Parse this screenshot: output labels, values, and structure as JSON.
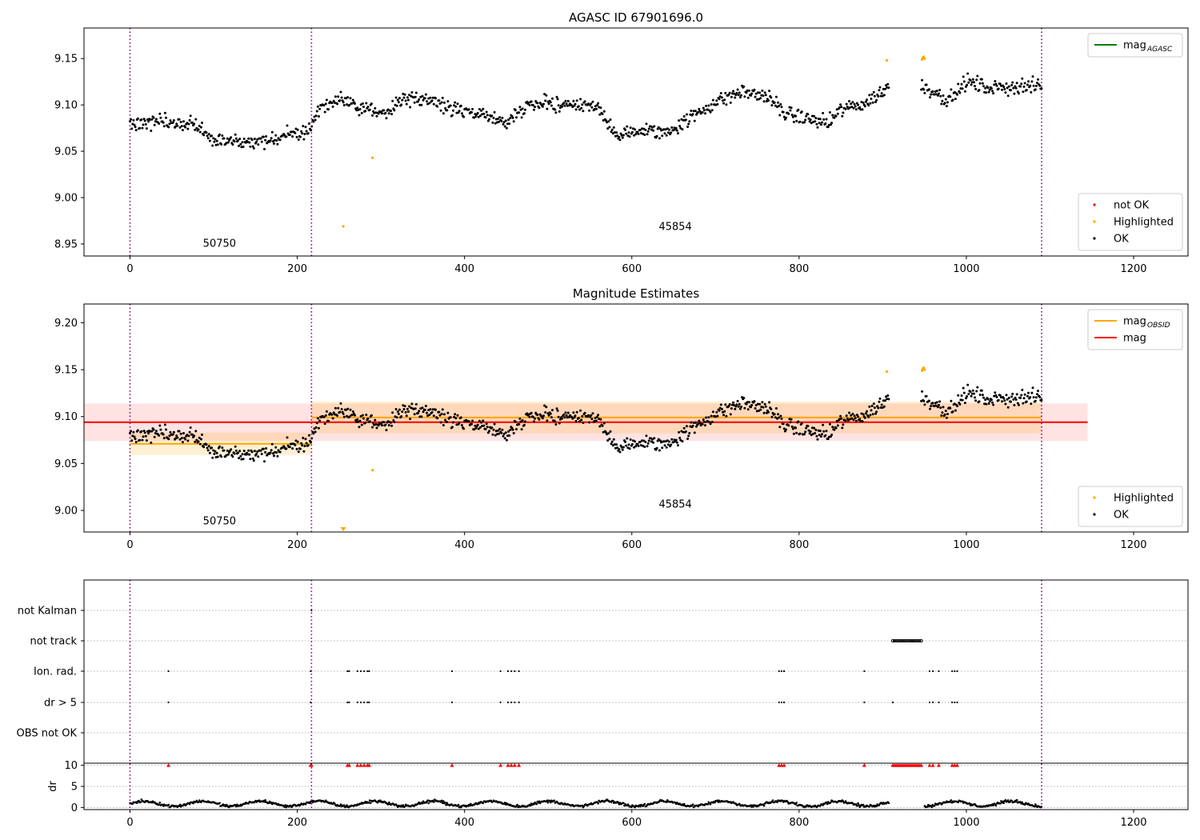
{
  "chart_data": [
    {
      "type": "scatter",
      "title": "AGASC ID 67901696.0",
      "xlim": [
        -55,
        1265
      ],
      "ylim": [
        8.937,
        9.183
      ],
      "xticks": [
        "0",
        "200",
        "400",
        "600",
        "800",
        "1000",
        "1200"
      ],
      "yticks": [
        "8.95",
        "9.00",
        "9.05",
        "9.10",
        "9.15"
      ],
      "obs_boundaries": [
        0,
        217,
        1090
      ],
      "obsid_labels": [
        {
          "text": "50750",
          "x": 107,
          "y": 8.947
        },
        {
          "text": "45854",
          "x": 652,
          "y": 8.965
        }
      ],
      "lines": [],
      "legend_top": {
        "entries": [
          {
            "label": "mag",
            "sub": "AGASC",
            "color": "#008000"
          }
        ],
        "position": "top-right"
      },
      "legend_bottom": {
        "entries": [
          {
            "label": "not OK",
            "color": "#ff0000"
          },
          {
            "label": "Highlighted",
            "color": "#ffa500"
          },
          {
            "label": "OK",
            "color": "#000000"
          }
        ],
        "position": "bottom-right"
      },
      "highlighted_points": [
        [
          255,
          8.969
        ],
        [
          290,
          9.043
        ],
        [
          905,
          9.148
        ],
        [
          947,
          9.149
        ],
        [
          948,
          9.151
        ],
        [
          949,
          9.152
        ],
        [
          950,
          9.15
        ]
      ]
    },
    {
      "type": "scatter",
      "title": "Magnitude Estimates",
      "xlim": [
        -55,
        1265
      ],
      "ylim": [
        8.977,
        9.22
      ],
      "xticks": [
        "0",
        "200",
        "400",
        "600",
        "800",
        "1000",
        "1200"
      ],
      "yticks": [
        "9.00",
        "9.05",
        "9.10",
        "9.15",
        "9.20"
      ],
      "obs_boundaries": [
        0,
        217,
        1090
      ],
      "obsid_labels": [
        {
          "text": "50750",
          "x": 107,
          "y": 8.985
        },
        {
          "text": "45854",
          "x": 652,
          "y": 9.003
        }
      ],
      "lines": [
        {
          "name": "mag",
          "color": "#ff0000",
          "x0": -55,
          "x1": 1145,
          "y": 9.094,
          "band": [
            9.074,
            9.114
          ]
        },
        {
          "name": "mag OBSID 50750",
          "color": "#ffa500",
          "x0": 0,
          "x1": 217,
          "y": 9.071,
          "band": [
            9.059,
            9.083
          ]
        },
        {
          "name": "mag OBSID 45854",
          "color": "#ffa500",
          "x0": 217,
          "x1": 1090,
          "y": 9.099,
          "band": [
            9.082,
            9.116
          ]
        }
      ],
      "legend_top": {
        "entries": [
          {
            "label": "mag",
            "sub": "OBSID",
            "color": "#ffa500"
          },
          {
            "label": "mag",
            "sub": "",
            "color": "#ff0000"
          }
        ],
        "position": "top-right"
      },
      "legend_bottom": {
        "entries": [
          {
            "label": "Highlighted",
            "color": "#ffa500"
          },
          {
            "label": "OK",
            "color": "#000000"
          }
        ],
        "position": "bottom-right"
      },
      "highlighted_points": [
        [
          290,
          9.043
        ],
        [
          905,
          9.148
        ],
        [
          947,
          9.149
        ],
        [
          948,
          9.151
        ],
        [
          949,
          9.152
        ],
        [
          950,
          9.15
        ]
      ],
      "clipped_markers": [
        {
          "x": 255
        }
      ]
    },
    {
      "type": "scatter",
      "title": "",
      "xlim": [
        -55,
        1265
      ],
      "xticks": [
        "0",
        "200",
        "400",
        "600",
        "800",
        "1000",
        "1200"
      ],
      "obs_boundaries": [
        0,
        217,
        1090
      ],
      "flag_labels": [
        "not Kalman",
        "not track",
        "Ion. rad.",
        "dr > 5",
        "OBS not OK"
      ],
      "flag_points": {
        "not Kalman": [
          217
        ],
        "not track": [
          912,
          914,
          916,
          918,
          920,
          922,
          924,
          926,
          928,
          930,
          932,
          934,
          936,
          938,
          940,
          942,
          944,
          946
        ],
        "Ion. rad.": [
          46,
          216,
          260,
          262,
          272,
          276,
          280,
          284,
          286,
          385,
          443,
          452,
          456,
          460,
          465,
          776,
          779,
          782,
          878,
          956,
          960,
          967,
          983,
          986,
          989
        ],
        "dr > 5": [
          46,
          216,
          260,
          262,
          272,
          276,
          280,
          284,
          286,
          385,
          443,
          452,
          456,
          460,
          465,
          776,
          779,
          782,
          878,
          912,
          956,
          960,
          967,
          983,
          986,
          989
        ],
        "OBS not OK": []
      },
      "dr_ylabel": "dr",
      "dr_yticks": [
        "0",
        "5",
        "10"
      ],
      "dr_ylim": [
        -0.5,
        10.5
      ],
      "dr_clip_points": [
        46,
        216,
        217,
        260,
        262,
        272,
        276,
        280,
        284,
        286,
        385,
        443,
        452,
        456,
        460,
        465,
        776,
        779,
        782,
        878,
        912,
        914,
        916,
        918,
        920,
        922,
        924,
        926,
        928,
        930,
        932,
        934,
        936,
        938,
        940,
        942,
        944,
        946,
        956,
        960,
        967,
        983,
        986,
        989
      ]
    }
  ]
}
